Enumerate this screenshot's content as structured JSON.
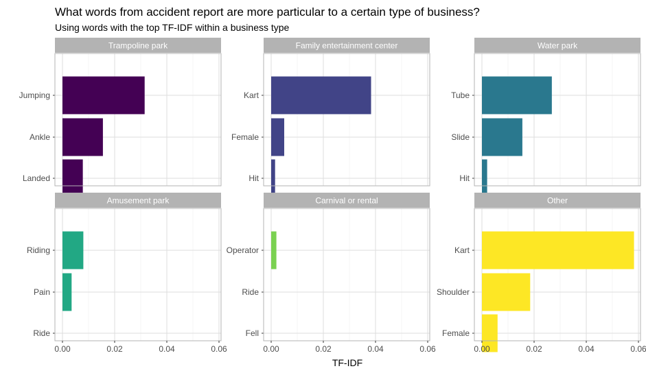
{
  "chart_data": {
    "type": "bar",
    "orientation": "horizontal",
    "title": "What words from accident report are more particular to a certain type of business?",
    "subtitle": "Using words with the top TF-IDF within a business type",
    "xlabel": "TF-IDF",
    "xlim": [
      0,
      0.06
    ],
    "xticks": [
      "0.00",
      "0.02",
      "0.04",
      "0.06"
    ],
    "xtick_values": [
      0,
      0.02,
      0.04,
      0.06
    ],
    "grid": true,
    "facets": [
      {
        "name": "Trampoline park",
        "color": "#440154",
        "categories": [
          "Jumping",
          "Ankle",
          "Landed"
        ],
        "values": [
          0.0315,
          0.0155,
          0.0078
        ]
      },
      {
        "name": "Family entertainment center",
        "color": "#414487",
        "categories": [
          "Kart",
          "Female",
          "Hit"
        ],
        "values": [
          0.0383,
          0.005,
          0.0015
        ]
      },
      {
        "name": "Water park",
        "color": "#2a788e",
        "categories": [
          "Tube",
          "Slide",
          "Hit"
        ],
        "values": [
          0.0268,
          0.0155,
          0.002
        ]
      },
      {
        "name": "Amusement park",
        "color": "#22a884",
        "categories": [
          "Riding",
          "Pain",
          "Ride"
        ],
        "values": [
          0.008,
          0.0035,
          0.0
        ]
      },
      {
        "name": "Carnival or rental",
        "color": "#7ad151",
        "categories": [
          "Operator",
          "Ride",
          "Fell"
        ],
        "values": [
          0.002,
          0.0,
          0.0
        ]
      },
      {
        "name": "Other",
        "color": "#fde725",
        "categories": [
          "Kart",
          "Shoulder",
          "Female"
        ],
        "values": [
          0.0583,
          0.0185,
          0.006
        ]
      }
    ]
  }
}
